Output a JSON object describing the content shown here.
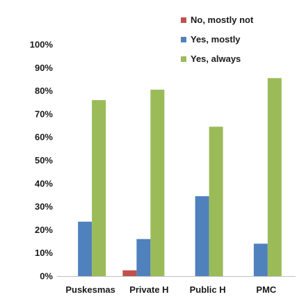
{
  "chart_data": {
    "type": "bar",
    "categories": [
      "Puskesmas",
      "Private H",
      "Public H",
      "PMC"
    ],
    "series": [
      {
        "name": "No, mostly not",
        "color": "#c0504d",
        "values": [
          0,
          2.5,
          0,
          0
        ]
      },
      {
        "name": "Yes, mostly",
        "color": "#4f81bd",
        "values": [
          23.5,
          16,
          34.5,
          14
        ]
      },
      {
        "name": "Yes, always",
        "color": "#9bbb59",
        "values": [
          76,
          80.5,
          64.5,
          85.5
        ]
      }
    ],
    "ylim": [
      0,
      100
    ],
    "yticks": [
      "0%",
      "10%",
      "20%",
      "30%",
      "40%",
      "50%",
      "60%",
      "70%",
      "80%",
      "90%",
      "100%"
    ],
    "legend_position": "top-right",
    "grid": false
  }
}
